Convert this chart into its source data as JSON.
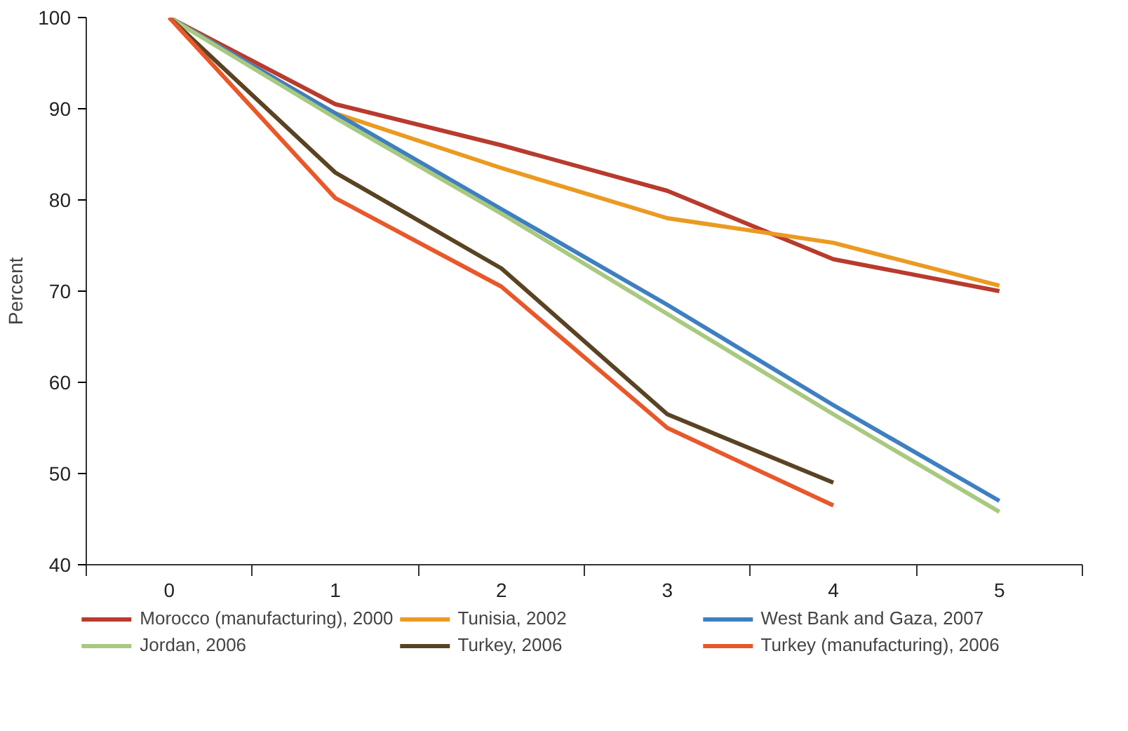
{
  "chart_data": {
    "type": "line",
    "ylabel": "Percent",
    "x": [
      0,
      1,
      2,
      3,
      4,
      5
    ],
    "xlim": [
      -0.5,
      5.5
    ],
    "xticks": [
      {
        "value": -0.5,
        "label": null
      },
      0,
      {
        "value": 0.5,
        "label": null
      },
      1,
      {
        "value": 1.5,
        "label": null
      },
      2,
      {
        "value": 2.5,
        "label": null
      },
      3,
      {
        "value": 3.5,
        "label": null
      },
      4,
      {
        "value": 4.5,
        "label": null
      },
      5,
      {
        "value": 5.5,
        "label": null
      }
    ],
    "ylim": [
      40,
      100
    ],
    "yticks": [
      40,
      50,
      60,
      70,
      80,
      90,
      100
    ],
    "grid": false,
    "legend": "bottom",
    "marker": "none",
    "line_style": "solid",
    "series": [
      {
        "name": "Morocco (manufacturing), 2000",
        "color": "#b83b2e",
        "values": [
          100,
          90.5,
          86,
          81,
          73.5,
          70
        ]
      },
      {
        "name": "Tunisia, 2002",
        "color": "#eb9a22",
        "values": [
          100,
          89.5,
          83.5,
          78,
          75.3,
          70.6
        ]
      },
      {
        "name": "West Bank and Gaza, 2007",
        "color": "#3f7fc1",
        "values": [
          100,
          89.5,
          79,
          68.5,
          57.5,
          47
        ]
      },
      {
        "name": "Jordan, 2006",
        "color": "#a8c97f",
        "values": [
          100,
          89,
          78.5,
          67.5,
          56.5,
          45.8
        ]
      },
      {
        "name": "Turkey, 2006",
        "color": "#5a4323",
        "values": [
          100,
          83,
          72.5,
          56.5,
          49,
          null
        ]
      },
      {
        "name": "Turkey (manufacturing), 2006",
        "color": "#e8582a",
        "values": [
          100,
          80.2,
          70.5,
          55,
          46.5,
          null
        ]
      }
    ]
  }
}
